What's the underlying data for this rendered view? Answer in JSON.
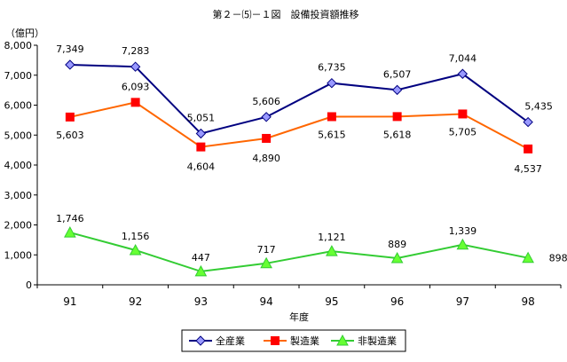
{
  "chart_data": {
    "type": "line",
    "title": "第２－⑸－１図　設備投資額推移",
    "ylabel": "（億円）",
    "xlabel": "年度",
    "categories": [
      "91",
      "92",
      "93",
      "94",
      "95",
      "96",
      "97",
      "98"
    ],
    "ylim": [
      0,
      8000
    ],
    "yticks": [
      0,
      1000,
      2000,
      3000,
      4000,
      5000,
      6000,
      7000,
      8000
    ],
    "ytick_labels": [
      "0",
      "1,000",
      "2,000",
      "3,000",
      "4,000",
      "5,000",
      "6,000",
      "7,000",
      "8,000"
    ],
    "legend_position": "bottom-right",
    "series": [
      {
        "name": "全産業",
        "key": "all",
        "marker": "diamond",
        "color": "#000080",
        "marker_fill": "#9999ff",
        "values": [
          7349,
          7283,
          5051,
          5606,
          6735,
          6507,
          7044,
          5435
        ],
        "labels": [
          "7,349",
          "7,283",
          "5,051",
          "5,606",
          "6,735",
          "6,507",
          "7,044",
          "5,435"
        ]
      },
      {
        "name": "製造業",
        "key": "mfg",
        "marker": "square",
        "color": "#ff6600",
        "marker_fill": "#ff0000",
        "values": [
          5603,
          6093,
          4604,
          4890,
          5615,
          5618,
          5705,
          4537
        ],
        "labels": [
          "5,603",
          "6,093",
          "4,604",
          "4,890",
          "5,615",
          "5,618",
          "5,705",
          "4,537"
        ]
      },
      {
        "name": "非製造業",
        "key": "nonmfg",
        "marker": "triangle",
        "color": "#33cc33",
        "marker_fill": "#66ff33",
        "values": [
          1746,
          1156,
          447,
          717,
          1121,
          889,
          1339,
          898
        ],
        "labels": [
          "1,746",
          "1,156",
          "447",
          "717",
          "1,121",
          "889",
          "1,339",
          "898"
        ]
      }
    ]
  }
}
